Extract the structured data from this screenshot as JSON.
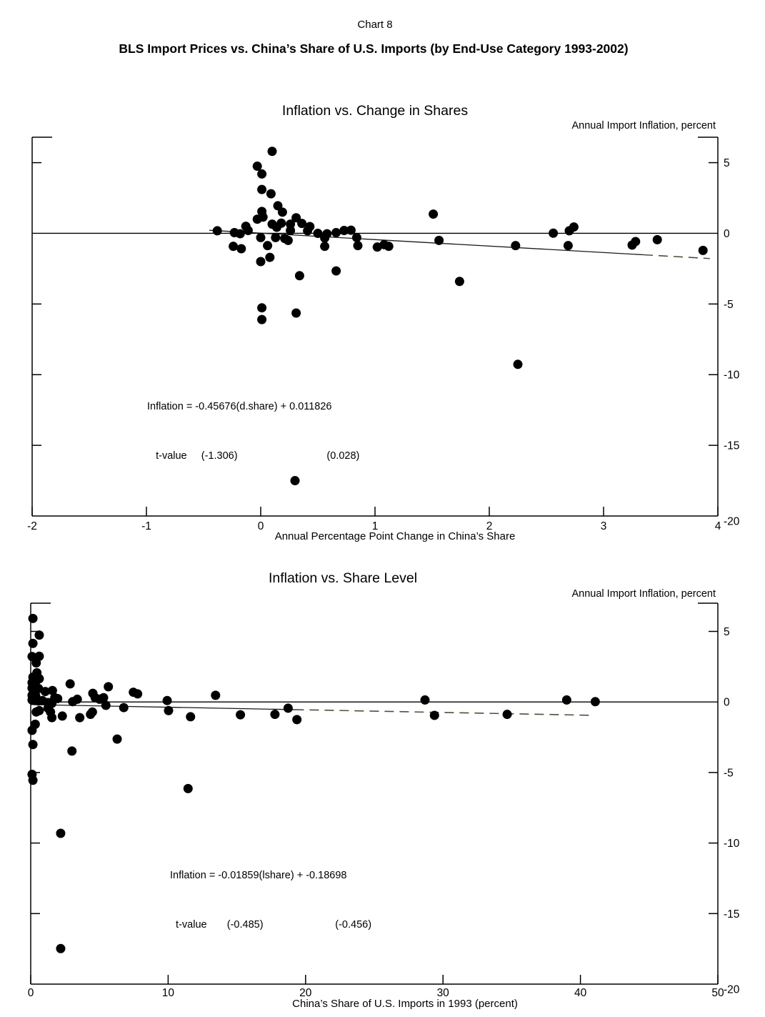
{
  "page": {
    "chart_label": "Chart 8",
    "title": "BLS Import Prices vs. China’s Share of U.S. Imports (by End-Use Category 1993-2002)"
  },
  "colors": {
    "dot": "#000000",
    "line": "#1a1a1a",
    "dash": "#4f4f3a",
    "frame": "#000000"
  },
  "chart_data": [
    {
      "type": "scatter",
      "title": "Inflation vs. Change in Shares",
      "y_axis_caption": "Annual Import Inflation, percent",
      "xlabel": "Annual Percentage Point Change in China’s Share",
      "xlim": [
        -2,
        4
      ],
      "ylim": [
        -20,
        6.8
      ],
      "x_ticks": [
        -2,
        -1,
        0,
        1,
        2,
        3,
        4
      ],
      "y_side_ticks": [
        5,
        -5,
        -10,
        -15
      ],
      "y_tick_labels": [
        5,
        0,
        -5,
        -10,
        -15,
        -20
      ],
      "grid": false,
      "annotation_line1": "Inflation = -0.45676(d.share) + 0.011826",
      "annotation_line2": "   t-value     (-1.306)                               (0.028)",
      "regression": {
        "slope": -0.45676,
        "intercept": 0.011826,
        "t_values": [
          "-1.306",
          "0.028"
        ],
        "x_start": -0.45,
        "dash_from": 3.35,
        "x_end": 3.93
      },
      "points": [
        [
          0.1,
          5.8
        ],
        [
          -0.03,
          4.75
        ],
        [
          0.01,
          4.2
        ],
        [
          0.01,
          3.1
        ],
        [
          0.09,
          2.8
        ],
        [
          0.15,
          1.95
        ],
        [
          0.19,
          1.5
        ],
        [
          0.01,
          1.55
        ],
        [
          0.02,
          1.15
        ],
        [
          -0.03,
          1.0
        ],
        [
          0.31,
          1.1
        ],
        [
          0.36,
          0.7
        ],
        [
          -0.13,
          0.5
        ],
        [
          -0.11,
          0.2
        ],
        [
          -0.38,
          0.18
        ],
        [
          -0.23,
          0.05
        ],
        [
          -0.18,
          -0.03
        ],
        [
          0.1,
          0.65
        ],
        [
          0.14,
          0.43
        ],
        [
          0.18,
          0.72
        ],
        [
          0.26,
          0.65
        ],
        [
          0.43,
          0.48
        ],
        [
          0.26,
          0.2
        ],
        [
          0.41,
          0.18
        ],
        [
          0.5,
          0.0
        ],
        [
          0.58,
          -0.03
        ],
        [
          0.66,
          0.05
        ],
        [
          0.73,
          0.2
        ],
        [
          0.79,
          0.22
        ],
        [
          -0.24,
          -0.92
        ],
        [
          -0.17,
          -1.09
        ],
        [
          0.0,
          -0.3
        ],
        [
          0.06,
          -0.87
        ],
        [
          0.08,
          -1.7
        ],
        [
          0.0,
          -2.0
        ],
        [
          0.13,
          -0.3
        ],
        [
          0.21,
          -0.36
        ],
        [
          0.24,
          -0.5
        ],
        [
          0.34,
          -3.0
        ],
        [
          0.56,
          -0.33
        ],
        [
          0.56,
          -0.92
        ],
        [
          0.66,
          -2.66
        ],
        [
          0.84,
          -0.3
        ],
        [
          0.85,
          -0.87
        ],
        [
          1.02,
          -0.97
        ],
        [
          1.08,
          -0.8
        ],
        [
          1.12,
          -0.92
        ],
        [
          0.01,
          -5.27
        ],
        [
          0.31,
          -5.64
        ],
        [
          0.01,
          -6.1
        ],
        [
          0.3,
          -17.5
        ],
        [
          1.51,
          1.36
        ],
        [
          1.56,
          -0.5
        ],
        [
          1.74,
          -3.4
        ],
        [
          2.23,
          -0.87
        ],
        [
          2.25,
          -9.27
        ],
        [
          2.56,
          0.01
        ],
        [
          2.7,
          0.18
        ],
        [
          2.74,
          0.45
        ],
        [
          2.69,
          -0.87
        ],
        [
          3.25,
          -0.83
        ],
        [
          3.28,
          -0.58
        ],
        [
          3.47,
          -0.45
        ],
        [
          3.87,
          -1.21
        ]
      ]
    },
    {
      "type": "scatter",
      "title": "Inflation vs. Share Level",
      "y_axis_caption": "Annual Import Inflation, percent",
      "xlabel": "China’s Share of U.S. Imports in 1993 (percent)",
      "xlim": [
        0,
        50
      ],
      "ylim": [
        -20,
        7.0
      ],
      "x_ticks": [
        0,
        10,
        20,
        30,
        40,
        50
      ],
      "y_side_ticks": [
        5,
        -5,
        -10,
        -15
      ],
      "y_tick_labels": [
        5,
        0,
        -5,
        -10,
        -15,
        -20
      ],
      "grid": false,
      "annotation_line1": "Inflation = -0.01859(lshare) + -0.18698",
      "annotation_line2": "  t-value       (-0.485)                         (-0.456)",
      "regression": {
        "slope": -0.01859,
        "intercept": -0.18698,
        "t_values": [
          "-0.485",
          "-0.456"
        ],
        "x_start": 0.0,
        "dash_from": 19.2,
        "x_end": 41.0
      },
      "points": [
        [
          0.16,
          5.92
        ],
        [
          0.62,
          4.74
        ],
        [
          0.16,
          4.15
        ],
        [
          0.1,
          3.22
        ],
        [
          0.36,
          3.1
        ],
        [
          0.62,
          3.24
        ],
        [
          0.4,
          2.77
        ],
        [
          0.45,
          2.07
        ],
        [
          0.16,
          1.76
        ],
        [
          0.4,
          1.7
        ],
        [
          0.62,
          1.65
        ],
        [
          0.1,
          1.37
        ],
        [
          0.33,
          1.3
        ],
        [
          0.1,
          0.98
        ],
        [
          0.57,
          0.95
        ],
        [
          1.06,
          0.74
        ],
        [
          1.58,
          0.81
        ],
        [
          2.87,
          1.28
        ],
        [
          0.1,
          0.47
        ],
        [
          0.36,
          0.44
        ],
        [
          0.1,
          0.14
        ],
        [
          0.33,
          0.1
        ],
        [
          0.57,
          0.07
        ],
        [
          0.85,
          0.1
        ],
        [
          1.26,
          -0.04
        ],
        [
          1.54,
          -0.1
        ],
        [
          1.75,
          0.3
        ],
        [
          1.96,
          0.24
        ],
        [
          3.05,
          0.02
        ],
        [
          3.39,
          0.19
        ],
        [
          4.52,
          0.61
        ],
        [
          4.69,
          0.3
        ],
        [
          5.01,
          0.19
        ],
        [
          5.3,
          0.3
        ],
        [
          5.47,
          -0.24
        ],
        [
          5.65,
          1.08
        ],
        [
          6.77,
          -0.4
        ],
        [
          7.47,
          0.69
        ],
        [
          7.78,
          0.57
        ],
        [
          9.93,
          0.1
        ],
        [
          10.03,
          -0.61
        ],
        [
          11.63,
          -1.05
        ],
        [
          0.62,
          -0.61
        ],
        [
          0.4,
          -0.71
        ],
        [
          1.26,
          -0.44
        ],
        [
          1.44,
          -0.71
        ],
        [
          1.54,
          -1.11
        ],
        [
          2.3,
          -1.0
        ],
        [
          3.57,
          -1.11
        ],
        [
          4.35,
          -0.88
        ],
        [
          4.49,
          -0.71
        ],
        [
          0.33,
          -1.58
        ],
        [
          0.1,
          -2.01
        ],
        [
          0.16,
          -3.02
        ],
        [
          6.29,
          -2.63
        ],
        [
          3.0,
          -3.48
        ],
        [
          13.45,
          0.47
        ],
        [
          15.26,
          -0.91
        ],
        [
          17.77,
          -0.88
        ],
        [
          18.73,
          -0.44
        ],
        [
          19.37,
          -1.25
        ],
        [
          28.69,
          0.14
        ],
        [
          29.38,
          -0.95
        ],
        [
          34.67,
          -0.88
        ],
        [
          39.0,
          0.14
        ],
        [
          41.08,
          0.02
        ],
        [
          0.1,
          -5.13
        ],
        [
          0.16,
          -5.55
        ],
        [
          2.18,
          -9.31
        ],
        [
          11.45,
          -6.14
        ],
        [
          2.18,
          -17.48
        ]
      ]
    }
  ]
}
